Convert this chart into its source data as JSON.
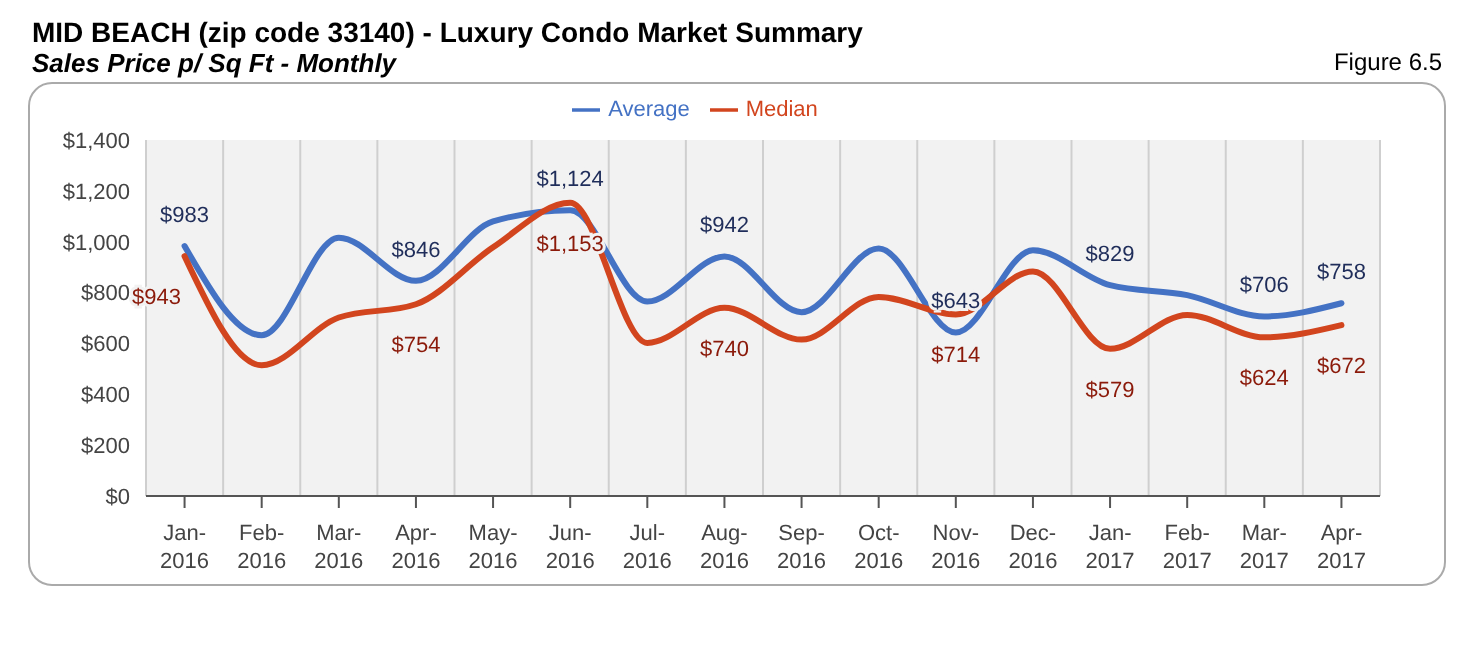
{
  "chart_data": {
    "type": "line",
    "title": "MID BEACH (zip code 33140) - Luxury Condo Market Summary",
    "subtitle": "Sales Price  p/ Sq Ft - Monthly",
    "annotations": [
      "Figure 6.5"
    ],
    "categories": [
      "Jan-2016",
      "Feb-2016",
      "Mar-2016",
      "Apr-2016",
      "May-2016",
      "Jun-2016",
      "Jul-2016",
      "Aug-2016",
      "Sep-2016",
      "Oct-2016",
      "Nov-2016",
      "Dec-2016",
      "Jan-2017",
      "Feb-2017",
      "Mar-2017",
      "Apr-2017"
    ],
    "series": [
      {
        "name": "Average",
        "color": "#4472c4",
        "values": [
          983,
          632,
          1016,
          846,
          1080,
          1124,
          765,
          942,
          723,
          973,
          643,
          966,
          829,
          790,
          706,
          758
        ],
        "value_labels": [
          "$983",
          null,
          null,
          "$846",
          null,
          "$1,124",
          null,
          "$942",
          null,
          null,
          "$643",
          null,
          "$829",
          null,
          "$706",
          "$758"
        ]
      },
      {
        "name": "Median",
        "color": "#d2451e",
        "values": [
          943,
          514,
          702,
          754,
          978,
          1153,
          602,
          740,
          615,
          783,
          714,
          883,
          579,
          712,
          624,
          672
        ],
        "value_labels": [
          "$943",
          null,
          null,
          "$754",
          null,
          "$1,153",
          null,
          "$740",
          null,
          null,
          "$714",
          null,
          "$579",
          null,
          "$624",
          "$672"
        ]
      }
    ],
    "ylim": [
      0,
      1400
    ],
    "yticks": [
      {
        "value": 0,
        "label": "$0"
      },
      {
        "value": 200,
        "label": "$200"
      },
      {
        "value": 400,
        "label": "$400"
      },
      {
        "value": 600,
        "label": "$600"
      },
      {
        "value": 800,
        "label": "$800"
      },
      {
        "value": 1000,
        "label": "$1,000"
      },
      {
        "value": 1200,
        "label": "$1,200"
      },
      {
        "value": 1400,
        "label": "$1,400"
      }
    ],
    "grid": "x",
    "legend": "top",
    "marker": "none",
    "line_style": "solid"
  }
}
